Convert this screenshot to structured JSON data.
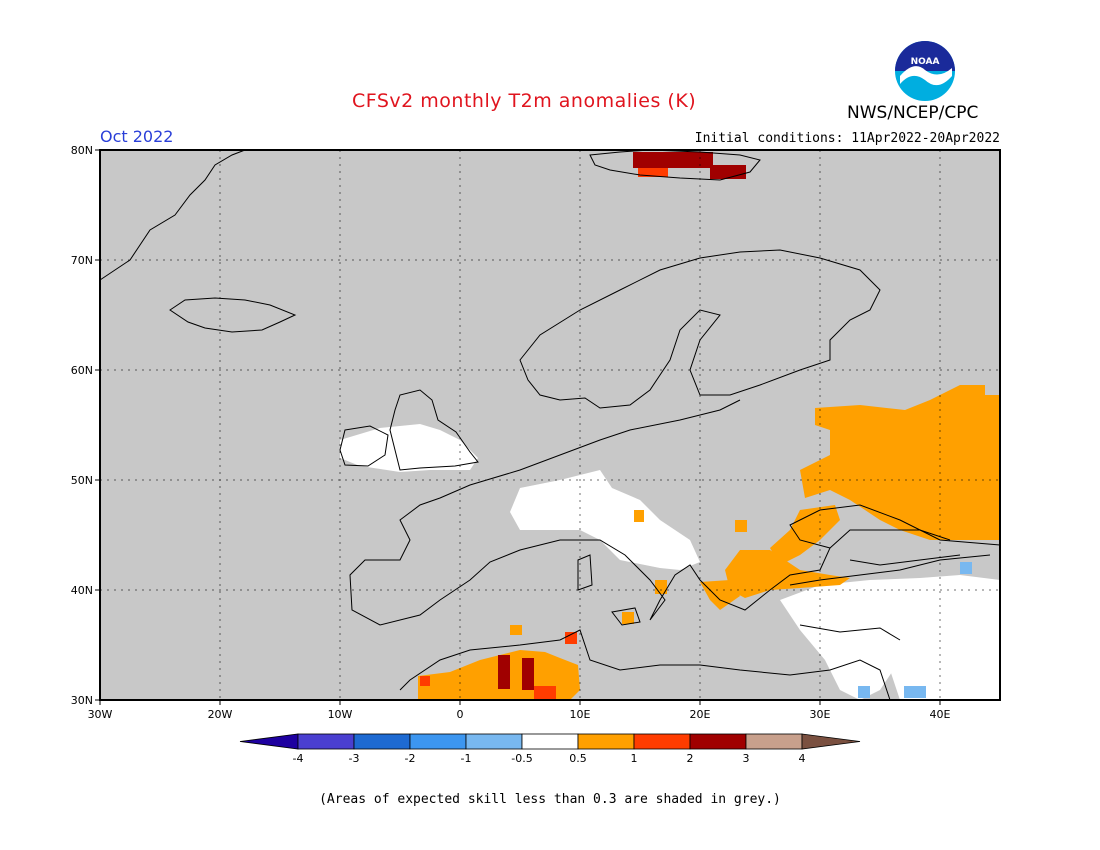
{
  "header": {
    "title": "CFSv2 monthly T2m anomalies (K)",
    "organization": "NWS/NCEP/CPC",
    "logo_text": "NOAA",
    "month": "Oct 2022",
    "initial_conditions": "Initial conditions: 11Apr2022-20Apr2022"
  },
  "map": {
    "lon_range": [
      -30,
      45
    ],
    "lat_range": [
      30,
      80
    ],
    "lat_labels": [
      "80N",
      "70N",
      "60N",
      "50N",
      "40N",
      "30N"
    ],
    "lon_labels": [
      "30W",
      "20W",
      "10W",
      "0",
      "10E",
      "20E",
      "30E",
      "40E"
    ],
    "skill_mask_color": "#c8c8c8"
  },
  "legend": {
    "bins": [
      {
        "color": "#1e00a0"
      },
      {
        "color": "#4a3fd0"
      },
      {
        "color": "#1e6ad2"
      },
      {
        "color": "#3c96f0"
      },
      {
        "color": "#78b8f0"
      },
      {
        "color": "#ffffff"
      },
      {
        "color": "#ffa000"
      },
      {
        "color": "#ff3c00"
      },
      {
        "color": "#a00000"
      },
      {
        "color": "#c8a08c"
      },
      {
        "color": "#7a5040"
      }
    ],
    "ticks": [
      "-4",
      "-3",
      "-2",
      "-1",
      "-0.5",
      "0.5",
      "1",
      "2",
      "3",
      "4"
    ]
  },
  "footnote": "(Areas of expected skill less than 0.3 are shaded in grey.)"
}
